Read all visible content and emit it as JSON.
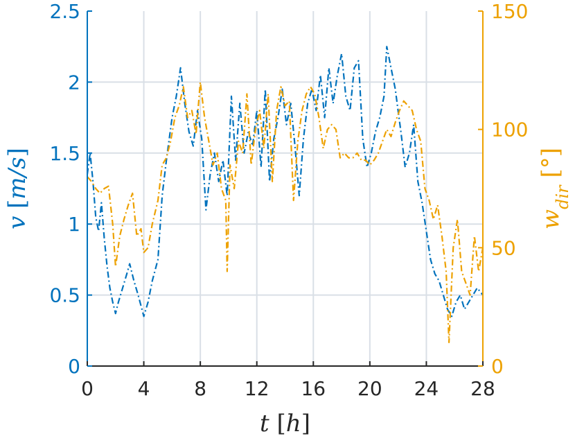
{
  "chart_data": {
    "type": "line",
    "dual_axis": true,
    "grid": true,
    "xlabel": {
      "var": "t",
      "unit": "h"
    },
    "ylabel_left": {
      "var": "v",
      "unit": "m/s"
    },
    "ylabel_right": {
      "var": "w",
      "sub": "dir",
      "unit": "°"
    },
    "xlim": [
      0,
      28
    ],
    "ylim_left": [
      0,
      2.5
    ],
    "ylim_right": [
      0,
      150
    ],
    "xticks": [
      0,
      4,
      8,
      12,
      16,
      20,
      24,
      28
    ],
    "xtick_labels": [
      "0",
      "4",
      "8",
      "12",
      "16",
      "20",
      "24",
      "28"
    ],
    "yticks_left": [
      0,
      0.5,
      1,
      1.5,
      2,
      2.5
    ],
    "ytick_labels_left": [
      "0",
      "0.5",
      "1",
      "1.5",
      "2",
      "2.5"
    ],
    "yticks_right": [
      0,
      50,
      100,
      150
    ],
    "ytick_labels_right": [
      "0",
      "50",
      "100",
      "150"
    ],
    "colors": {
      "left": "#0072BD",
      "right": "#EDA100",
      "grid": "#D9DFE6"
    },
    "series": [
      {
        "axis": "left",
        "line_style": "dash-dot",
        "color": "#0072BD",
        "x": [
          0,
          0.2,
          0.4,
          0.6,
          0.8,
          1.0,
          1.2,
          1.4,
          1.6,
          1.8,
          2.0,
          2.2,
          2.5,
          2.8,
          3.0,
          3.3,
          3.6,
          4.0,
          4.3,
          4.6,
          5.0,
          5.3,
          5.6,
          6.0,
          6.3,
          6.6,
          6.9,
          7.2,
          7.5,
          7.8,
          8.1,
          8.4,
          8.7,
          9.0,
          9.3,
          9.6,
          9.9,
          10.2,
          10.5,
          10.8,
          11.1,
          11.4,
          11.7,
          12.0,
          12.3,
          12.6,
          12.9,
          13.2,
          13.5,
          13.8,
          14.1,
          14.4,
          14.7,
          15.0,
          15.3,
          15.6,
          15.9,
          16.2,
          16.5,
          16.8,
          17.1,
          17.4,
          17.7,
          18.0,
          18.3,
          18.6,
          18.9,
          19.2,
          19.5,
          19.8,
          20.1,
          20.4,
          20.7,
          21.0,
          21.2,
          21.4,
          21.6,
          21.8,
          22.0,
          22.2,
          22.5,
          22.8,
          23.1,
          23.4,
          23.7,
          24.0,
          24.3,
          24.6,
          24.9,
          25.2,
          25.5,
          25.8,
          26.1,
          26.4,
          26.7,
          27.0,
          27.3,
          27.6,
          28.0
        ],
        "values": [
          1.35,
          1.5,
          1.3,
          1.05,
          0.95,
          1.15,
          0.9,
          0.7,
          0.55,
          0.45,
          0.37,
          0.45,
          0.55,
          0.65,
          0.72,
          0.6,
          0.5,
          0.35,
          0.45,
          0.6,
          0.75,
          1.2,
          1.45,
          1.75,
          1.9,
          2.1,
          1.85,
          1.65,
          1.55,
          1.8,
          1.6,
          1.1,
          1.35,
          1.5,
          1.3,
          1.45,
          1.2,
          1.9,
          1.45,
          1.85,
          1.5,
          1.65,
          1.55,
          1.8,
          1.4,
          1.95,
          1.3,
          1.6,
          1.75,
          1.95,
          1.7,
          1.85,
          1.55,
          1.2,
          1.6,
          1.85,
          1.95,
          1.8,
          2.05,
          1.75,
          2.1,
          1.85,
          2.05,
          2.2,
          1.9,
          1.8,
          2.1,
          2.15,
          1.6,
          1.4,
          1.5,
          1.65,
          1.75,
          1.9,
          2.25,
          2.15,
          2.05,
          1.95,
          1.8,
          1.65,
          1.4,
          1.5,
          1.7,
          1.3,
          1.15,
          0.95,
          0.75,
          0.65,
          0.6,
          0.5,
          0.4,
          0.35,
          0.45,
          0.5,
          0.4,
          0.45,
          0.5,
          0.55,
          0.5
        ]
      },
      {
        "axis": "right",
        "line_style": "dash-dot",
        "color": "#EDA100",
        "x": [
          0,
          0.3,
          0.6,
          0.9,
          1.2,
          1.5,
          1.8,
          2.0,
          2.3,
          2.6,
          2.9,
          3.2,
          3.5,
          3.8,
          4.0,
          4.3,
          4.6,
          5.0,
          5.3,
          5.6,
          5.9,
          6.2,
          6.5,
          6.8,
          7.1,
          7.4,
          7.7,
          8.0,
          8.3,
          8.6,
          8.9,
          9.2,
          9.5,
          9.8,
          9.9,
          10.1,
          10.4,
          10.7,
          11.0,
          11.3,
          11.6,
          11.9,
          12.2,
          12.5,
          12.8,
          13.1,
          13.4,
          13.7,
          14.0,
          14.3,
          14.6,
          14.9,
          15.2,
          15.5,
          15.8,
          16.1,
          16.4,
          16.7,
          17.0,
          17.3,
          17.6,
          17.9,
          18.2,
          18.5,
          18.8,
          19.1,
          19.4,
          19.7,
          20.0,
          20.3,
          20.6,
          20.9,
          21.2,
          21.5,
          21.8,
          22.1,
          22.4,
          22.7,
          23.0,
          23.3,
          23.6,
          23.9,
          24.2,
          24.5,
          24.8,
          25.1,
          25.4,
          25.6,
          25.9,
          26.2,
          26.5,
          26.8,
          27.1,
          27.4,
          27.7,
          28.0
        ],
        "values": [
          80,
          78,
          75,
          73,
          75,
          76,
          60,
          42,
          55,
          62,
          68,
          73,
          55,
          58,
          48,
          50,
          60,
          70,
          85,
          88,
          95,
          105,
          110,
          118,
          105,
          108,
          98,
          120,
          105,
          95,
          85,
          90,
          75,
          70,
          40,
          85,
          75,
          95,
          90,
          115,
          85,
          100,
          108,
          92,
          115,
          78,
          108,
          118,
          110,
          112,
          70,
          95,
          108,
          115,
          118,
          115,
          105,
          92,
          100,
          102,
          100,
          88,
          90,
          88,
          88,
          90,
          87,
          87,
          85,
          87,
          90,
          95,
          100,
          97,
          103,
          108,
          112,
          110,
          108,
          100,
          95,
          75,
          70,
          62,
          68,
          55,
          40,
          10,
          50,
          62,
          40,
          35,
          30,
          55,
          40,
          50
        ]
      }
    ]
  }
}
